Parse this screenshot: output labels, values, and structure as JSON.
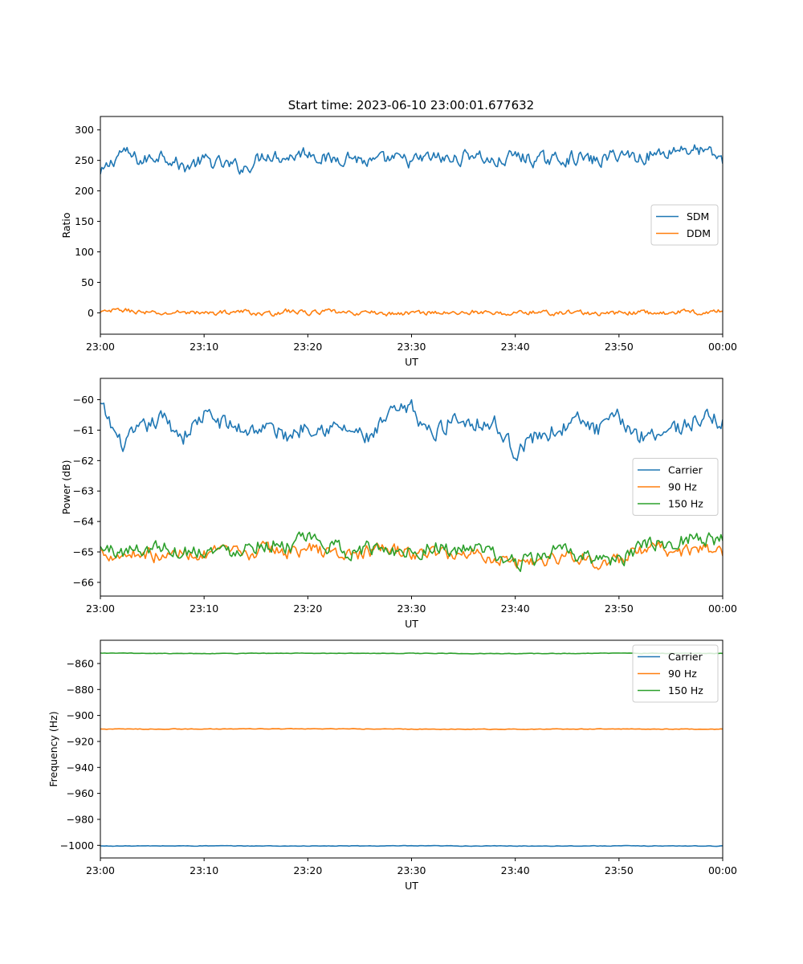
{
  "figure": {
    "title": "Start time: 2023-06-10 23:00:01.677632"
  },
  "chart_data": [
    {
      "type": "line",
      "title": "Start time: 2023-06-10 23:00:01.677632",
      "xlabel": "UT",
      "ylabel": "Ratio",
      "xlim": [
        "23:00",
        "00:00"
      ],
      "x_ticks": [
        "23:00",
        "23:10",
        "23:20",
        "23:30",
        "23:40",
        "23:50",
        "00:00"
      ],
      "ylim": [
        -35,
        322
      ],
      "y_ticks": [
        0,
        50,
        100,
        150,
        200,
        250,
        300
      ],
      "grid": false,
      "legend": "center-right",
      "series": [
        {
          "name": "SDM",
          "color": "#1f77b4",
          "x_minutes": [
            0,
            2,
            4,
            6,
            8,
            10,
            12,
            14,
            16,
            18,
            20,
            22,
            24,
            26,
            28,
            30,
            32,
            34,
            36,
            38,
            40,
            42,
            44,
            46,
            48,
            50,
            52,
            54,
            56,
            58,
            60
          ],
          "values": [
            225,
            265,
            248,
            262,
            238,
            250,
            242,
            238,
            262,
            255,
            265,
            250,
            258,
            245,
            252,
            248,
            255,
            250,
            262,
            245,
            258,
            250,
            252,
            255,
            248,
            262,
            255,
            262,
            270,
            265,
            252
          ]
        },
        {
          "name": "DDM",
          "color": "#ff7f0e",
          "x_minutes": [
            0,
            2,
            4,
            6,
            8,
            10,
            12,
            14,
            16,
            18,
            20,
            22,
            24,
            26,
            28,
            30,
            32,
            34,
            36,
            38,
            40,
            42,
            44,
            46,
            48,
            50,
            52,
            54,
            56,
            58,
            60
          ],
          "values": [
            0,
            5,
            1,
            -2,
            2,
            -1,
            1,
            2,
            -3,
            3,
            0,
            2,
            -1,
            1,
            -2,
            0,
            1,
            -1,
            2,
            -2,
            0,
            1,
            -1,
            2,
            -3,
            0,
            1,
            -1,
            2,
            1,
            3
          ]
        }
      ]
    },
    {
      "type": "line",
      "xlabel": "UT",
      "ylabel": "Power (dB)",
      "xlim": [
        "23:00",
        "00:00"
      ],
      "x_ticks": [
        "23:00",
        "23:10",
        "23:20",
        "23:30",
        "23:40",
        "23:50",
        "00:00"
      ],
      "ylim": [
        -66.45,
        -59.3
      ],
      "y_ticks": [
        -66,
        -65,
        -64,
        -63,
        -62,
        -61,
        -60
      ],
      "grid": false,
      "legend": "center-right",
      "series": [
        {
          "name": "Carrier",
          "color": "#1f77b4",
          "x_minutes": [
            0,
            2,
            4,
            6,
            8,
            10,
            12,
            14,
            16,
            18,
            20,
            22,
            24,
            26,
            28,
            30,
            32,
            34,
            36,
            38,
            40,
            42,
            44,
            46,
            48,
            50,
            52,
            54,
            56,
            58,
            60
          ],
          "values": [
            -60.2,
            -61.5,
            -61.0,
            -60.6,
            -61.2,
            -60.5,
            -60.8,
            -61.0,
            -60.9,
            -61.2,
            -60.8,
            -60.9,
            -61.0,
            -61.3,
            -60.5,
            -60.3,
            -61.2,
            -60.6,
            -60.7,
            -60.8,
            -61.7,
            -61.2,
            -61.0,
            -60.7,
            -61.0,
            -60.6,
            -61.2,
            -61.0,
            -60.9,
            -60.6,
            -60.7
          ]
        },
        {
          "name": "90 Hz",
          "color": "#ff7f0e",
          "x_minutes": [
            0,
            2,
            4,
            6,
            8,
            10,
            12,
            14,
            16,
            18,
            20,
            22,
            24,
            26,
            28,
            30,
            32,
            34,
            36,
            38,
            40,
            42,
            44,
            46,
            48,
            50,
            52,
            54,
            56,
            58,
            60
          ],
          "values": [
            -65.0,
            -65.1,
            -65.0,
            -65.2,
            -65.0,
            -65.1,
            -65.0,
            -65.1,
            -64.9,
            -65.0,
            -64.9,
            -65.0,
            -65.1,
            -65.0,
            -64.9,
            -65.1,
            -65.0,
            -65.1,
            -65.0,
            -65.2,
            -65.3,
            -65.3,
            -65.2,
            -65.1,
            -65.4,
            -65.3,
            -65.0,
            -64.9,
            -65.0,
            -64.9,
            -65.0
          ]
        },
        {
          "name": "150 Hz",
          "color": "#2ca02c",
          "x_minutes": [
            0,
            2,
            4,
            6,
            8,
            10,
            12,
            14,
            16,
            18,
            20,
            22,
            24,
            26,
            28,
            30,
            32,
            34,
            36,
            38,
            40,
            42,
            44,
            46,
            48,
            50,
            52,
            54,
            56,
            58,
            60
          ],
          "values": [
            -64.9,
            -65.0,
            -64.9,
            -64.8,
            -65.0,
            -64.9,
            -65.0,
            -64.8,
            -64.7,
            -64.8,
            -64.6,
            -64.8,
            -65.0,
            -64.9,
            -64.9,
            -65.0,
            -64.8,
            -65.0,
            -64.9,
            -65.1,
            -65.4,
            -65.2,
            -65.0,
            -65.1,
            -65.2,
            -65.3,
            -64.9,
            -64.7,
            -64.6,
            -64.5,
            -64.6
          ]
        }
      ]
    },
    {
      "type": "line",
      "xlabel": "UT",
      "ylabel": "Frequency (Hz)",
      "xlim": [
        "23:00",
        "00:00"
      ],
      "x_ticks": [
        "23:00",
        "23:10",
        "23:20",
        "23:30",
        "23:40",
        "23:50",
        "00:00"
      ],
      "ylim": [
        -1009.7,
        -842.1
      ],
      "y_ticks": [
        -1000,
        -980,
        -960,
        -940,
        -920,
        -900,
        -880,
        -860
      ],
      "grid": false,
      "legend": "top-right",
      "series": [
        {
          "name": "Carrier",
          "color": "#1f77b4",
          "x_minutes": [
            0,
            10,
            20,
            30,
            40,
            50,
            60
          ],
          "values": [
            -1000.5,
            -1000.4,
            -1000.5,
            -1000.4,
            -1000.5,
            -1000.4,
            -1000.5
          ]
        },
        {
          "name": "90 Hz",
          "color": "#ff7f0e",
          "x_minutes": [
            0,
            10,
            20,
            30,
            40,
            50,
            60
          ],
          "values": [
            -910.5,
            -910.4,
            -910.3,
            -910.5,
            -910.6,
            -910.4,
            -910.5
          ]
        },
        {
          "name": "150 Hz",
          "color": "#2ca02c",
          "x_minutes": [
            0,
            10,
            20,
            30,
            40,
            50,
            60
          ],
          "values": [
            -852.0,
            -852.3,
            -852.1,
            -852.2,
            -852.4,
            -852.1,
            -852.2
          ]
        }
      ]
    }
  ]
}
